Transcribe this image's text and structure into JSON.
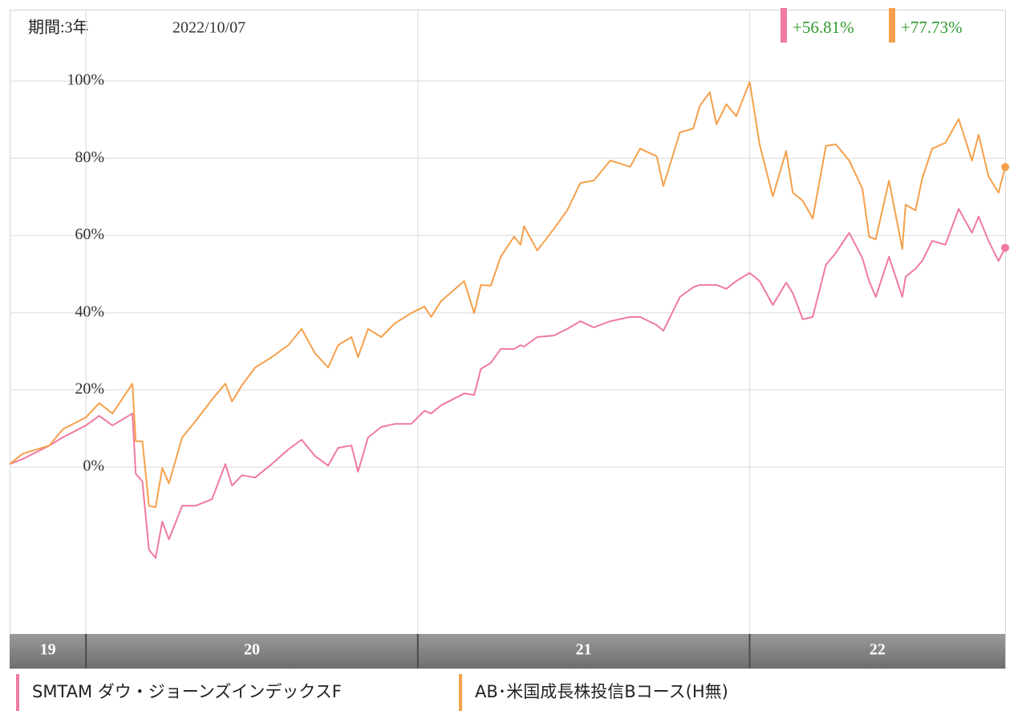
{
  "chart_data": {
    "type": "line",
    "period_label": "期間:3年",
    "date": "2022/10/07",
    "x": [
      2019.77,
      2019.81,
      2019.89,
      2019.93,
      2020.0,
      2020.04,
      2020.08,
      2020.14,
      2020.15,
      2020.17,
      2020.19,
      2020.21,
      2020.23,
      2020.25,
      2020.29,
      2020.33,
      2020.38,
      2020.42,
      2020.44,
      2020.47,
      2020.51,
      2020.56,
      2020.61,
      2020.65,
      2020.69,
      2020.73,
      2020.76,
      2020.8,
      2020.82,
      2020.85,
      2020.89,
      2020.93,
      2020.98,
      2021.02,
      2021.04,
      2021.07,
      2021.14,
      2021.17,
      2021.19,
      2021.22,
      2021.25,
      2021.29,
      2021.31,
      2021.32,
      2021.36,
      2021.41,
      2021.45,
      2021.49,
      2021.53,
      2021.58,
      2021.64,
      2021.67,
      2021.72,
      2021.74,
      2021.79,
      2021.83,
      2021.85,
      2021.88,
      2021.9,
      2021.93,
      2021.96,
      2022.0,
      2022.03,
      2022.07,
      2022.11,
      2022.13,
      2022.16,
      2022.19,
      2022.23,
      2022.26,
      2022.3,
      2022.34,
      2022.36,
      2022.38,
      2022.42,
      2022.46,
      2022.47,
      2022.5,
      2022.52,
      2022.55,
      2022.59,
      2022.63,
      2022.67,
      2022.69,
      2022.72,
      2022.75,
      2022.77
    ],
    "series": [
      {
        "name": "SMTAM ダウ・ジョーンズインデックスF",
        "color": "#f07aa0",
        "return_label": "+56.81%",
        "values": [
          0.8,
          2.1,
          5.6,
          7.7,
          10.8,
          13.3,
          10.8,
          13.9,
          -1.7,
          -3.7,
          -21.4,
          -23.5,
          -14.1,
          -18.7,
          -10,
          -10,
          -8.3,
          0.8,
          -4.8,
          -2.1,
          -2.7,
          0.8,
          4.6,
          7.1,
          2.9,
          0.4,
          5,
          5.6,
          -1.2,
          7.7,
          10.4,
          11.2,
          11.2,
          14.6,
          13.9,
          16,
          19.1,
          18.7,
          25.4,
          27,
          30.6,
          30.6,
          31.6,
          31.2,
          33.7,
          34.1,
          35.8,
          37.8,
          36.2,
          37.8,
          38.9,
          38.9,
          36.8,
          35.3,
          44.1,
          46.6,
          47.2,
          47.2,
          47.2,
          46.2,
          48.2,
          50.3,
          48.2,
          42,
          47.8,
          45.1,
          38.3,
          38.9,
          52.4,
          55.5,
          60.7,
          54.1,
          48.2,
          44.1,
          54.5,
          44.1,
          49.3,
          51.4,
          53.4,
          58.6,
          57.6,
          66.9,
          60.7,
          64.9,
          58.6,
          53.4,
          56.81
        ]
      },
      {
        "name": "AB･米国成長株投信Bコース(H無)",
        "color": "#f5a04a",
        "return_label": "+77.73%",
        "values": [
          0.8,
          3.5,
          5.6,
          9.8,
          12.9,
          16.6,
          13.9,
          21.6,
          6.7,
          6.7,
          -10,
          -10.4,
          -0.2,
          -4.2,
          7.7,
          11.9,
          17.5,
          21.6,
          17,
          21.2,
          25.8,
          28.5,
          31.6,
          35.8,
          29.5,
          25.8,
          31.6,
          33.7,
          28.5,
          35.8,
          33.7,
          37.2,
          39.9,
          41.6,
          38.9,
          43,
          48.2,
          39.9,
          47.2,
          47,
          54.5,
          59.7,
          57.6,
          62.4,
          56.1,
          61.7,
          66.5,
          73.6,
          74.2,
          79.4,
          77.8,
          82.5,
          80.5,
          72.8,
          86.7,
          87.7,
          93.6,
          97.1,
          88.8,
          94,
          90.9,
          99.8,
          83.6,
          70.1,
          81.9,
          71.1,
          69,
          64.4,
          83.2,
          83.6,
          79.4,
          72.1,
          59.7,
          59,
          74.2,
          56.5,
          68,
          66.5,
          74.8,
          82.5,
          84,
          90.2,
          79.4,
          86.1,
          75.3,
          71.1,
          77.73
        ]
      }
    ],
    "xlim": [
      2019.77,
      2022.77
    ],
    "xticks": [
      {
        "value": 2019,
        "label": "19"
      },
      {
        "value": 2020,
        "label": "20"
      },
      {
        "value": 2021,
        "label": "21"
      },
      {
        "value": 2022,
        "label": "22"
      }
    ],
    "ylim": [
      -43.2,
      118.5
    ],
    "yticks": [
      {
        "value": 0,
        "label": "0%"
      },
      {
        "value": 20,
        "label": "20%"
      },
      {
        "value": 40,
        "label": "40%"
      },
      {
        "value": 60,
        "label": "60%"
      },
      {
        "value": 80,
        "label": "80%"
      },
      {
        "value": 100,
        "label": "100%"
      }
    ],
    "grid": true
  }
}
